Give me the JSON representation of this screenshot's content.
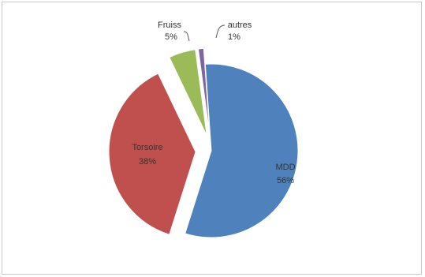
{
  "chart_data": {
    "type": "pie",
    "title": "",
    "legend": "none",
    "slices": [
      {
        "name": "MDD",
        "value": 56,
        "label": "56%",
        "color": "#4f81bd",
        "exploded": false,
        "label_inside": true
      },
      {
        "name": "Torsoire",
        "value": 38,
        "label": "38%",
        "color": "#c0504d",
        "exploded": true,
        "label_inside": true
      },
      {
        "name": "Fruiss",
        "value": 5,
        "label": "5%",
        "color": "#9bbb59",
        "exploded": true,
        "label_inside": false
      },
      {
        "name": "autres",
        "value": 1,
        "label": "1%",
        "color": "#8064a2",
        "exploded": true,
        "label_inside": false
      }
    ]
  }
}
